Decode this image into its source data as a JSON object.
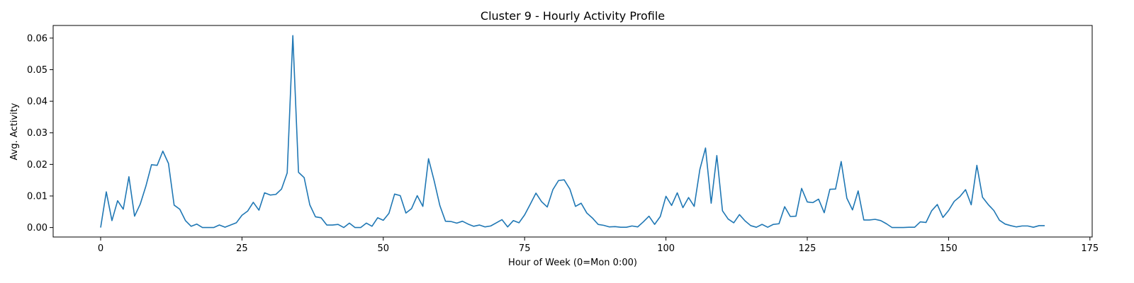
{
  "chart_data": {
    "type": "line",
    "title": "Cluster 9 - Hourly Activity Profile",
    "xlabel": "Hour of Week (0=Mon 0:00)",
    "ylabel": "Avg. Activity",
    "xlim": [
      -8.4,
      175.4
    ],
    "ylim": [
      -0.003,
      0.064
    ],
    "xticks": [
      0,
      25,
      50,
      75,
      100,
      125,
      150,
      175
    ],
    "yticks": [
      0.0,
      0.01,
      0.02,
      0.03,
      0.04,
      0.05,
      0.06
    ],
    "xtick_labels": [
      "0",
      "25",
      "50",
      "75",
      "100",
      "125",
      "150",
      "175"
    ],
    "ytick_labels": [
      "0.00",
      "0.01",
      "0.02",
      "0.03",
      "0.04",
      "0.05",
      "0.06"
    ],
    "grid": false,
    "color": "#1f77b4",
    "series": [
      {
        "values": [
          0.0,
          0.0113,
          0.0022,
          0.0085,
          0.0058,
          0.0161,
          0.0036,
          0.0074,
          0.0131,
          0.0199,
          0.0197,
          0.0242,
          0.0203,
          0.0071,
          0.0058,
          0.0022,
          0.0004,
          0.0011,
          0.0,
          0.0,
          0.0,
          0.0008,
          0.0001,
          0.0008,
          0.0015,
          0.0039,
          0.0052,
          0.008,
          0.0055,
          0.011,
          0.0103,
          0.0105,
          0.0122,
          0.0173,
          0.0608,
          0.0175,
          0.0158,
          0.0072,
          0.0034,
          0.0031,
          0.0008,
          0.0008,
          0.001,
          0.0,
          0.0014,
          0.0,
          0.0,
          0.0014,
          0.0004,
          0.0031,
          0.0023,
          0.0045,
          0.0106,
          0.0101,
          0.0046,
          0.006,
          0.0101,
          0.0067,
          0.0218,
          0.0148,
          0.007,
          0.002,
          0.0019,
          0.0014,
          0.002,
          0.0011,
          0.0004,
          0.0008,
          0.0002,
          0.0005,
          0.0015,
          0.0025,
          0.0002,
          0.0022,
          0.0015,
          0.004,
          0.0074,
          0.0109,
          0.0082,
          0.0065,
          0.012,
          0.0149,
          0.0151,
          0.0122,
          0.0067,
          0.0077,
          0.0046,
          0.003,
          0.001,
          0.0007,
          0.0002,
          0.0003,
          0.0001,
          0.0001,
          0.0005,
          0.0002,
          0.0018,
          0.0036,
          0.001,
          0.0035,
          0.0099,
          0.007,
          0.011,
          0.0063,
          0.0095,
          0.0067,
          0.0184,
          0.0252,
          0.0077,
          0.0228,
          0.0053,
          0.0027,
          0.0015,
          0.0041,
          0.0021,
          0.0006,
          0.0001,
          0.001,
          0.0001,
          0.001,
          0.0012,
          0.0066,
          0.0035,
          0.0036,
          0.0124,
          0.0081,
          0.0079,
          0.009,
          0.0047,
          0.0121,
          0.0122,
          0.0209,
          0.0093,
          0.0056,
          0.0116,
          0.0024,
          0.0024,
          0.0026,
          0.0022,
          0.0012,
          0.0,
          0.0,
          0.0,
          0.0001,
          0.0001,
          0.0018,
          0.0016,
          0.0053,
          0.0073,
          0.0032,
          0.0054,
          0.0083,
          0.0098,
          0.012,
          0.0072,
          0.0197,
          0.0096,
          0.0073,
          0.0054,
          0.0023,
          0.0011,
          0.0006,
          0.0002,
          0.0005,
          0.0005,
          0.0001,
          0.0006,
          0.0006
        ]
      }
    ]
  }
}
